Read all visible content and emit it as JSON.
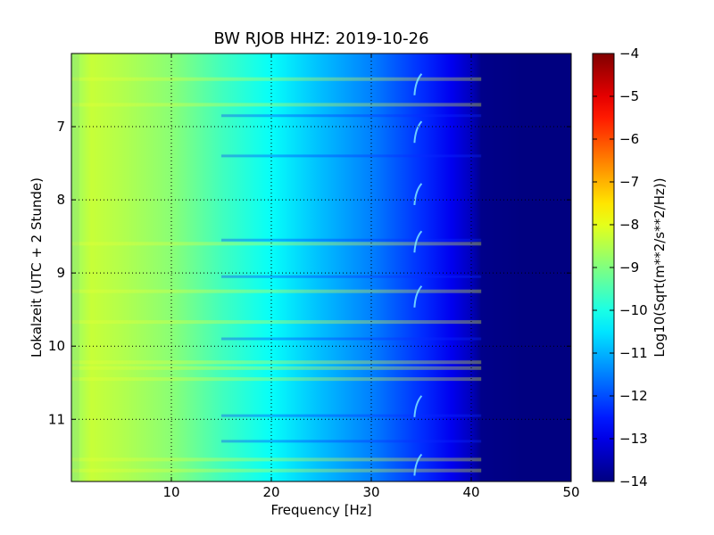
{
  "chart_data": {
    "type": "heatmap",
    "title": "BW RJOB HHZ: 2019-10-26",
    "xlabel": "Frequency [Hz]",
    "ylabel": "Lokalzeit (UTC + 2 Stunde)",
    "colorbar_label": "Log10(Sqrt(m**2/s**2/Hz))",
    "xlim": [
      0,
      50
    ],
    "ylim": [
      11.85,
      6.0
    ],
    "x_ticks": [
      10,
      20,
      30,
      40,
      50
    ],
    "x_tick_labels": [
      "10",
      "20",
      "30",
      "40",
      "50"
    ],
    "y_ticks": [
      7,
      8,
      9,
      10,
      11
    ],
    "y_tick_labels": [
      "7",
      "8",
      "9",
      "10",
      "11"
    ],
    "y_inverted": true,
    "grid": true,
    "colormap": "jet",
    "colorbar_range": [
      -14,
      -4
    ],
    "colorbar_ticks": [
      -4,
      -5,
      -6,
      -7,
      -8,
      -9,
      -10,
      -11,
      -12,
      -13,
      -14
    ],
    "colorbar_tick_labels": [
      "−4",
      "−5",
      "−6",
      "−7",
      "−8",
      "−9",
      "−10",
      "−11",
      "−12",
      "−13",
      "−14"
    ],
    "spectrum_profile": {
      "frequency_hz": [
        0,
        2,
        5,
        10,
        15,
        20,
        25,
        30,
        35,
        38,
        40,
        41,
        45,
        50
      ],
      "log10_amplitude": [
        -8.8,
        -8.3,
        -8.5,
        -8.9,
        -9.6,
        -10.2,
        -10.9,
        -11.5,
        -12.3,
        -12.9,
        -13.4,
        -13.9,
        -14,
        -14
      ]
    },
    "bright_bands_hour": [
      6.35,
      6.7,
      8.6,
      9.25,
      9.67,
      10.22,
      10.3,
      10.45,
      11.55,
      11.7
    ],
    "dark_bands_hour": [
      6.85,
      7.4,
      8.55,
      9.05,
      9.9,
      10.95,
      11.3
    ],
    "curved_feature_hz": 34.5
  }
}
